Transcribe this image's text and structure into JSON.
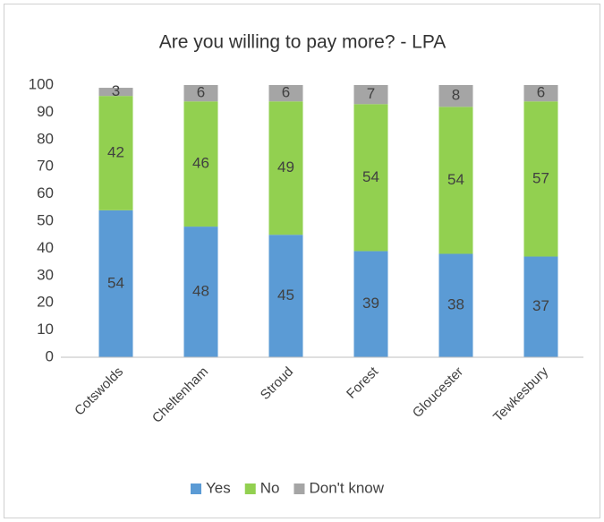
{
  "chart_data": {
    "type": "stacked_bar",
    "title": "Are you willing to pay more? - LPA",
    "categories": [
      "Cotswolds",
      "Cheltenham",
      "Stroud",
      "Forest",
      "Gloucester",
      "Tewkesbury"
    ],
    "series": [
      {
        "name": "Yes",
        "color": "#5b9bd5",
        "values": [
          54,
          48,
          45,
          39,
          38,
          37
        ]
      },
      {
        "name": "No",
        "color": "#92d050",
        "values": [
          42,
          46,
          49,
          54,
          54,
          57
        ]
      },
      {
        "name": "Don't know",
        "color": "#a5a5a5",
        "values": [
          3,
          6,
          6,
          7,
          8,
          6
        ]
      }
    ],
    "ylim": [
      0,
      100
    ],
    "yticks": [
      0,
      10,
      20,
      30,
      40,
      50,
      60,
      70,
      80,
      90,
      100
    ],
    "grid": false,
    "legend": "bottom"
  }
}
